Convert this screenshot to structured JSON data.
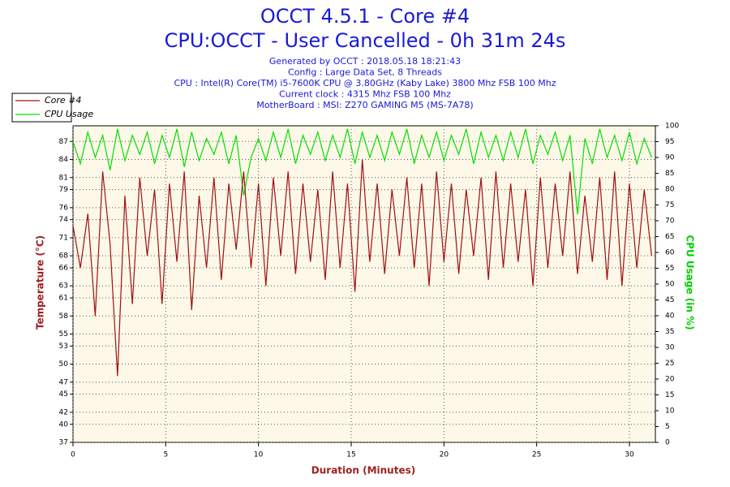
{
  "chart_data": {
    "type": "line",
    "title": "OCCT 4.5.1 - Core #4",
    "subtitle": "CPU:OCCT - User Cancelled - 0h 31m 24s",
    "info": [
      "Generated by OCCT : 2018.05.18 18:21:43",
      "Config : Large Data Set, 8 Threads",
      "CPU : Intel(R) Core(TM) i5-7600K CPU @ 3.80GHz (Kaby Lake) 3800 Mhz FSB 100 Mhz",
      "Current clock : 4315 Mhz FSB 100 Mhz",
      "MotherBoard : MSI: Z270 GAMING M5 (MS-7A78)"
    ],
    "xlabel": "Duration (Minutes)",
    "ylabel": "Temperature (°C)",
    "y2label": "CPU Usage (in %)",
    "x": [
      0,
      0.4,
      0.8,
      1.2,
      1.6,
      2.0,
      2.4,
      2.8,
      3.2,
      3.6,
      4.0,
      4.4,
      4.8,
      5.2,
      5.6,
      6.0,
      6.4,
      6.8,
      7.2,
      7.6,
      8.0,
      8.4,
      8.8,
      9.2,
      9.6,
      10.0,
      10.4,
      10.8,
      11.2,
      11.6,
      12.0,
      12.4,
      12.8,
      13.2,
      13.6,
      14.0,
      14.4,
      14.8,
      15.2,
      15.6,
      16.0,
      16.4,
      16.8,
      17.2,
      17.6,
      18.0,
      18.4,
      18.8,
      19.2,
      19.6,
      20.0,
      20.4,
      20.8,
      21.2,
      21.6,
      22.0,
      22.4,
      22.8,
      23.2,
      23.6,
      24.0,
      24.4,
      24.8,
      25.2,
      25.6,
      26.0,
      26.4,
      26.8,
      27.2,
      27.6,
      28.0,
      28.4,
      28.8,
      29.2,
      29.6,
      30.0,
      30.4,
      30.8,
      31.2
    ],
    "series": [
      {
        "name": "Core #4",
        "color": "#a01010",
        "values": [
          73,
          66,
          75,
          58,
          82,
          70,
          48,
          78,
          60,
          81,
          68,
          79,
          60,
          80,
          67,
          82,
          59,
          78,
          66,
          81,
          64,
          80,
          69,
          82,
          66,
          80,
          63,
          81,
          68,
          82,
          65,
          80,
          67,
          79,
          64,
          82,
          66,
          80,
          62,
          84,
          67,
          80,
          65,
          79,
          68,
          81,
          66,
          80,
          63,
          82,
          67,
          80,
          65,
          79,
          68,
          81,
          64,
          82,
          66,
          80,
          67,
          79,
          63,
          81,
          66,
          80,
          68,
          82,
          65,
          78,
          67,
          81,
          64,
          82,
          63,
          80,
          66,
          79,
          68
        ]
      },
      {
        "name": "CPU Usage",
        "color": "#00e000",
        "axis": "y2",
        "values": [
          95,
          88,
          98,
          90,
          97,
          86,
          99,
          89,
          97,
          91,
          98,
          88,
          97,
          90,
          99,
          87,
          98,
          89,
          96,
          91,
          98,
          88,
          97,
          78,
          90,
          96,
          89,
          98,
          90,
          99,
          88,
          97,
          91,
          98,
          89,
          97,
          90,
          99,
          88,
          98,
          90,
          97,
          89,
          98,
          91,
          99,
          88,
          97,
          90,
          98,
          89,
          97,
          91,
          99,
          88,
          98,
          90,
          97,
          89,
          98,
          90,
          99,
          88,
          97,
          91,
          98,
          89,
          97,
          72,
          96,
          88,
          99,
          90,
          97,
          89,
          98,
          88,
          96,
          90
        ]
      }
    ],
    "xlim": [
      0,
      31.4
    ],
    "xticks": [
      0,
      5,
      10,
      15,
      20,
      25,
      30
    ],
    "ylim": [
      37,
      89.6
    ],
    "yticks": [
      37,
      40,
      42,
      45,
      47,
      50,
      53,
      55,
      58,
      61,
      63,
      66,
      68,
      71,
      74,
      76,
      79,
      81,
      84,
      87
    ],
    "y2lim": [
      0,
      100
    ],
    "y2ticks": [
      0,
      5,
      10,
      15,
      20,
      25,
      30,
      35,
      40,
      45,
      50,
      55,
      60,
      65,
      70,
      75,
      80,
      85,
      90,
      95,
      100
    ],
    "grid": true,
    "legend": "upper left"
  }
}
